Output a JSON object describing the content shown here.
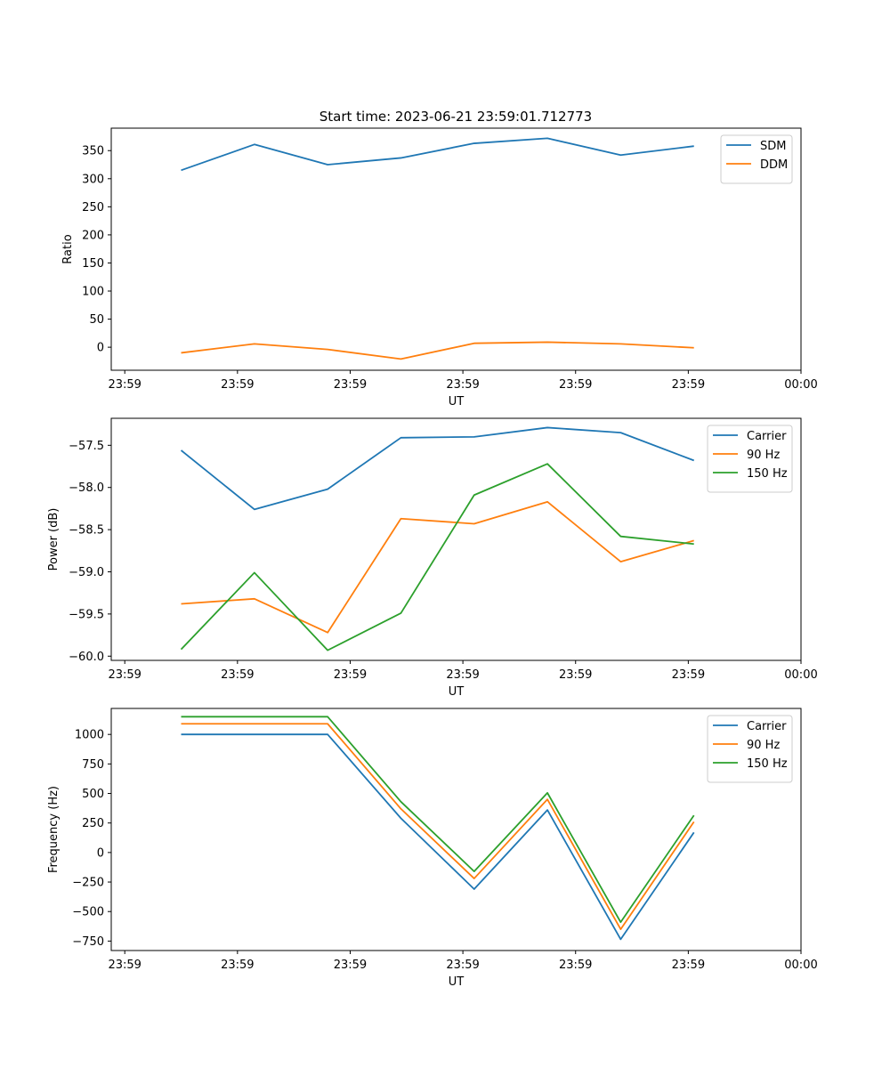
{
  "figure": {
    "title": "Start time: 2023-06-21 23:59:01.712773"
  },
  "chart_data": [
    {
      "type": "line",
      "title": "Start time: 2023-06-21 23:59:01.712773",
      "xlabel": "UT",
      "ylabel": "Ratio",
      "x": [
        0.5,
        1.15,
        1.8,
        2.45,
        3.1,
        3.75,
        4.4,
        5.05
      ],
      "xlim": [
        -0.12,
        6.0
      ],
      "ylim": [
        -41,
        390
      ],
      "xticks": [
        0,
        1,
        2,
        3,
        4,
        5,
        6
      ],
      "xtick_labels": [
        "23:59",
        "23:59",
        "23:59",
        "23:59",
        "23:59",
        "23:59",
        "00:00"
      ],
      "yticks": [
        0,
        50,
        100,
        150,
        200,
        250,
        300,
        350
      ],
      "ytick_labels": [
        "0",
        "50",
        "100",
        "150",
        "200",
        "250",
        "300",
        "350"
      ],
      "legend": "top-right",
      "series": [
        {
          "name": "SDM",
          "color": "#1f77b4",
          "values": [
            315,
            361,
            325,
            337,
            363,
            372,
            342,
            358
          ]
        },
        {
          "name": "DDM",
          "color": "#ff7f0e",
          "values": [
            -10,
            6,
            -4,
            -21,
            7,
            9,
            6,
            -1
          ]
        }
      ]
    },
    {
      "type": "line",
      "xlabel": "UT",
      "ylabel": "Power (dB)",
      "x": [
        0.5,
        1.15,
        1.8,
        2.45,
        3.1,
        3.75,
        4.4,
        5.05
      ],
      "xlim": [
        -0.12,
        6.0
      ],
      "ylim": [
        -60.05,
        -57.18
      ],
      "xticks": [
        0,
        1,
        2,
        3,
        4,
        5,
        6
      ],
      "xtick_labels": [
        "23:59",
        "23:59",
        "23:59",
        "23:59",
        "23:59",
        "23:59",
        "00:00"
      ],
      "yticks": [
        -60.0,
        -59.5,
        -59.0,
        -58.5,
        -58.0,
        -57.5
      ],
      "ytick_labels": [
        "−60.0",
        "−59.5",
        "−59.0",
        "−58.5",
        "−58.0",
        "−57.5"
      ],
      "legend": "top-right",
      "series": [
        {
          "name": "Carrier",
          "color": "#1f77b4",
          "values": [
            -57.56,
            -58.26,
            -58.02,
            -57.41,
            -57.4,
            -57.29,
            -57.35,
            -57.68
          ]
        },
        {
          "name": "90 Hz",
          "color": "#ff7f0e",
          "values": [
            -59.38,
            -59.32,
            -59.72,
            -58.37,
            -58.43,
            -58.17,
            -58.88,
            -58.63
          ]
        },
        {
          "name": "150 Hz",
          "color": "#2ca02c",
          "values": [
            -59.92,
            -59.01,
            -59.93,
            -59.49,
            -58.09,
            -57.72,
            -58.58,
            -58.67
          ]
        }
      ]
    },
    {
      "type": "line",
      "xlabel": "UT",
      "ylabel": "Frequency (Hz)",
      "x": [
        0.5,
        1.15,
        1.8,
        2.45,
        3.1,
        3.75,
        4.4,
        5.05
      ],
      "xlim": [
        -0.12,
        6.0
      ],
      "ylim": [
        -830,
        1220
      ],
      "xticks": [
        0,
        1,
        2,
        3,
        4,
        5,
        6
      ],
      "xtick_labels": [
        "23:59",
        "23:59",
        "23:59",
        "23:59",
        "23:59",
        "23:59",
        "00:00"
      ],
      "yticks": [
        -750,
        -500,
        -250,
        0,
        250,
        500,
        750,
        1000
      ],
      "ytick_labels": [
        "−750",
        "−500",
        "−250",
        "0",
        "250",
        "500",
        "750",
        "1000"
      ],
      "legend": "top-right",
      "series": [
        {
          "name": "Carrier",
          "color": "#1f77b4",
          "values": [
            1000,
            1000,
            1000,
            290,
            -310,
            360,
            -735,
            170
          ]
        },
        {
          "name": "90 Hz",
          "color": "#ff7f0e",
          "values": [
            1090,
            1090,
            1090,
            370,
            -220,
            450,
            -650,
            260
          ]
        },
        {
          "name": "150 Hz",
          "color": "#2ca02c",
          "values": [
            1150,
            1150,
            1150,
            430,
            -160,
            505,
            -590,
            315
          ]
        }
      ]
    }
  ]
}
